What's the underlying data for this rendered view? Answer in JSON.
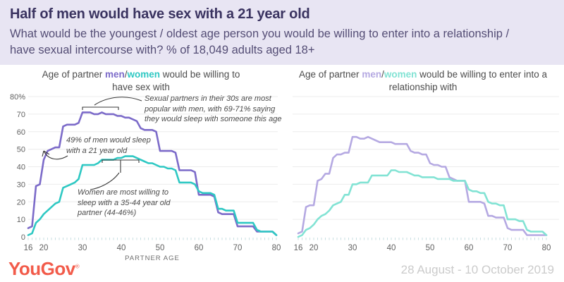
{
  "header": {
    "title": "Half of men would have sex with a 21 year old",
    "subtitle": "What would be the youngest / oldest age person you would be willing to enter into a relationship / have sexual intercourse with? % of 18,049 adults aged 18+"
  },
  "footer": {
    "logo_text": "YouGov",
    "logo_mark": "®",
    "date_range": "28 August - 10 October 2019"
  },
  "colors": {
    "header_bg": "#E8E5F3",
    "heading_text": "#3A3360",
    "subtitle_text": "#544D75",
    "men_sex": "#7C6BC9",
    "women_sex": "#2EC8C3",
    "men_rel": "#B5A9E2",
    "women_rel": "#82E3D4",
    "logo": "#F25B4A",
    "date_text": "#CBCBCB",
    "annotation_text": "#4A4A4A",
    "axis_text": "#616161",
    "gridline": "#ECECEC",
    "tick": "#C8DFE2"
  },
  "charts": [
    {
      "title_parts": {
        "prefix": "Age of partner ",
        "men": "men",
        "slash": "/",
        "women": "women",
        "suffix": " would be willing to have sex with"
      }
    },
    {
      "title_parts": {
        "prefix": "Age of partner ",
        "men": "men",
        "slash": "/",
        "women": "women",
        "suffix": " would be willing to enter into a relationship with"
      }
    }
  ],
  "annotations": {
    "thirties": "Sexual partners in their 30s are most popular with men, with 69-71% saying they would sleep with someone this age",
    "men_21": "49% of men would sleep with a 21 year old",
    "women_35_44": "Women are most willing to sleep with a 35-44 year old partner (44-46%)"
  },
  "axis": {
    "x_label": "PARTNER AGE",
    "y_ticks": [
      "80%",
      "70",
      "60",
      "50",
      "40",
      "30",
      "20",
      "10",
      "0"
    ],
    "x_ticks": [
      16,
      20,
      30,
      40,
      50,
      60,
      70,
      80
    ]
  },
  "chart_data": [
    {
      "type": "line",
      "title": "Age of partner men/women would be willing to have sex with",
      "xlabel": "PARTNER AGE",
      "ylabel": "% of adults",
      "xlim": [
        16,
        80
      ],
      "ylim": [
        0,
        80
      ],
      "grid": true,
      "legend_position": "in-title",
      "x": [
        16,
        17,
        18,
        19,
        20,
        21,
        22,
        23,
        24,
        25,
        26,
        27,
        28,
        29,
        30,
        31,
        32,
        33,
        34,
        35,
        36,
        37,
        38,
        39,
        40,
        41,
        42,
        43,
        44,
        45,
        46,
        47,
        48,
        49,
        50,
        51,
        52,
        53,
        54,
        55,
        56,
        57,
        58,
        59,
        60,
        61,
        62,
        63,
        64,
        65,
        66,
        67,
        68,
        69,
        70,
        71,
        72,
        73,
        74,
        75,
        76,
        77,
        78,
        79,
        80
      ],
      "series": [
        {
          "name": "men",
          "color_key": "men_sex",
          "values": [
            5,
            6,
            29,
            30,
            44,
            49,
            50,
            51,
            51,
            63,
            64,
            64,
            64,
            65,
            71,
            71,
            71,
            70,
            70,
            71,
            70,
            70,
            70,
            69,
            69,
            68,
            68,
            67,
            66,
            62,
            61,
            61,
            61,
            60,
            49,
            49,
            49,
            49,
            48,
            38,
            38,
            38,
            38,
            37,
            24,
            24,
            24,
            24,
            23,
            14,
            13,
            13,
            13,
            13,
            6,
            6,
            6,
            6,
            6,
            3,
            3,
            3,
            3,
            3,
            1
          ]
        },
        {
          "name": "women",
          "color_key": "women_sex",
          "values": [
            1,
            2,
            8,
            10,
            13,
            15,
            17,
            19,
            20,
            28,
            29,
            30,
            31,
            33,
            41,
            41,
            41,
            41,
            42,
            44,
            44,
            44,
            44,
            45,
            45,
            46,
            46,
            46,
            45,
            44,
            43,
            42,
            42,
            41,
            40,
            40,
            39,
            39,
            38,
            31,
            31,
            31,
            31,
            30,
            26,
            25,
            25,
            25,
            24,
            16,
            16,
            15,
            15,
            15,
            8,
            8,
            8,
            8,
            8,
            4,
            3,
            3,
            3,
            3,
            1
          ]
        }
      ]
    },
    {
      "type": "line",
      "title": "Age of partner men/women would be willing to enter into a relationship with",
      "xlabel": "",
      "ylabel": "% of adults",
      "xlim": [
        16,
        80
      ],
      "ylim": [
        0,
        80
      ],
      "grid": true,
      "legend_position": "in-title",
      "x": [
        16,
        17,
        18,
        19,
        20,
        21,
        22,
        23,
        24,
        25,
        26,
        27,
        28,
        29,
        30,
        31,
        32,
        33,
        34,
        35,
        36,
        37,
        38,
        39,
        40,
        41,
        42,
        43,
        44,
        45,
        46,
        47,
        48,
        49,
        50,
        51,
        52,
        53,
        54,
        55,
        56,
        57,
        58,
        59,
        60,
        61,
        62,
        63,
        64,
        65,
        66,
        67,
        68,
        69,
        70,
        71,
        72,
        73,
        74,
        75,
        76,
        77,
        78,
        79,
        80
      ],
      "series": [
        {
          "name": "men",
          "color_key": "men_rel",
          "values": [
            2,
            3,
            17,
            18,
            18,
            32,
            33,
            36,
            36,
            45,
            47,
            47,
            48,
            48,
            57,
            57,
            56,
            56,
            57,
            56,
            55,
            54,
            54,
            54,
            54,
            53,
            53,
            53,
            53,
            49,
            48,
            48,
            47,
            47,
            42,
            41,
            41,
            40,
            40,
            34,
            33,
            32,
            32,
            32,
            20,
            20,
            20,
            20,
            19,
            12,
            12,
            11,
            11,
            11,
            5,
            4,
            4,
            4,
            4,
            1,
            1,
            1,
            1,
            1,
            1
          ]
        },
        {
          "name": "women",
          "color_key": "women_rel",
          "values": [
            0,
            1,
            4,
            5,
            7,
            10,
            12,
            13,
            15,
            18,
            19,
            20,
            24,
            24,
            30,
            30,
            31,
            31,
            31,
            35,
            35,
            35,
            35,
            35,
            38,
            38,
            37,
            37,
            37,
            36,
            35,
            35,
            34,
            34,
            34,
            34,
            33,
            33,
            33,
            33,
            32,
            32,
            32,
            32,
            27,
            26,
            26,
            25,
            25,
            20,
            19,
            19,
            18,
            18,
            10,
            10,
            10,
            9,
            9,
            4,
            3,
            3,
            3,
            3,
            1
          ]
        }
      ]
    }
  ]
}
